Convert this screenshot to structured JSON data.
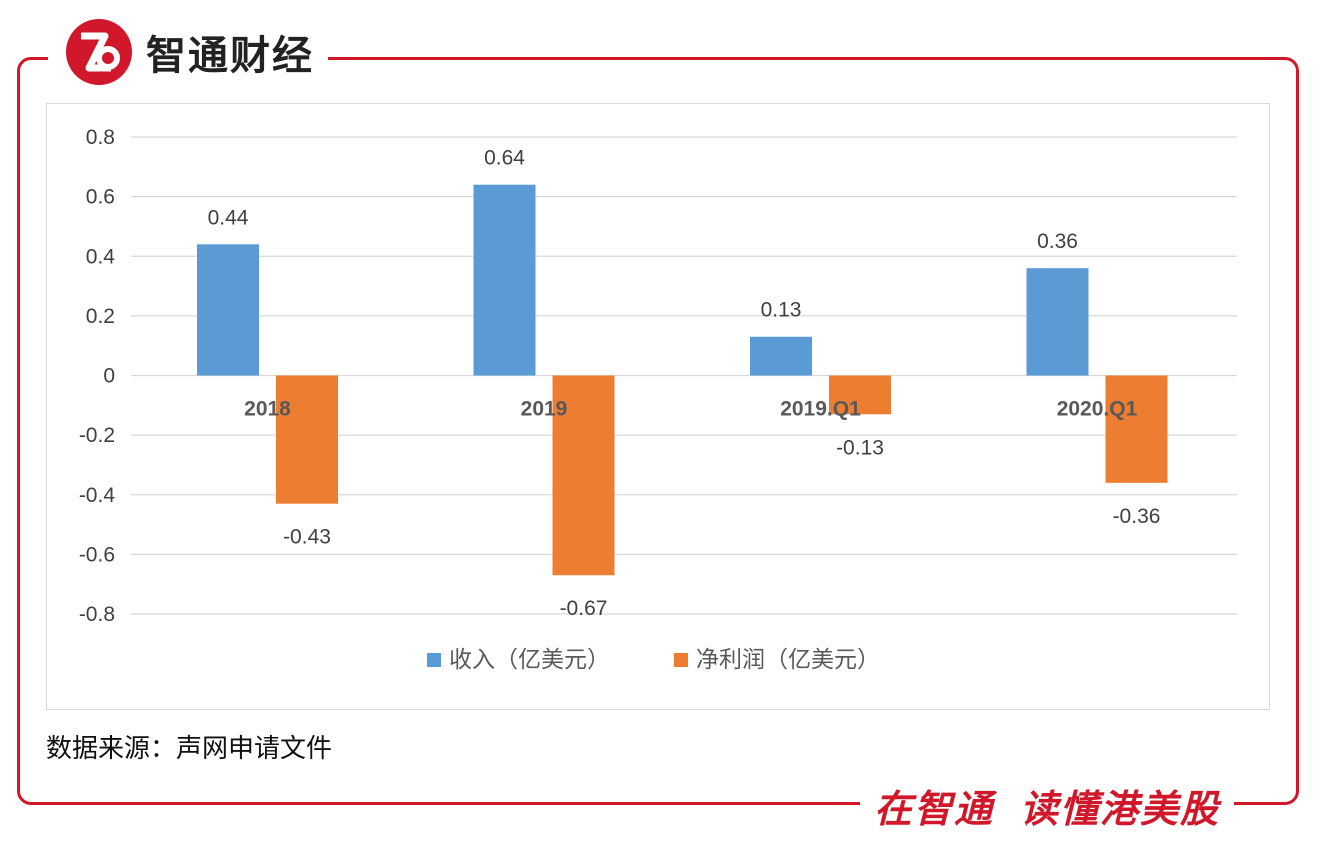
{
  "brand": {
    "name": "智通财经",
    "logo_icon": "zhitong-logo-icon",
    "accent": "#d0182a"
  },
  "chart_data": {
    "type": "bar",
    "categories": [
      "2018",
      "2019",
      "2019.Q1",
      "2020.Q1"
    ],
    "series": [
      {
        "name": "收入（亿美元）",
        "values": [
          0.44,
          0.64,
          0.13,
          0.36
        ],
        "labels": [
          "0.44",
          "0.64",
          "0.13",
          "0.36"
        ],
        "color": "#5b9bd5"
      },
      {
        "name": "净利润（亿美元）",
        "values": [
          -0.43,
          -0.67,
          -0.13,
          -0.36
        ],
        "labels": [
          "-0.43",
          "-0.67",
          "-0.13",
          "-0.36"
        ],
        "color": "#ed7d31"
      }
    ],
    "ylim": [
      -0.8,
      0.8
    ],
    "yticks": [
      "0.8",
      "0.6",
      "0.4",
      "0.2",
      "0",
      "-0.2",
      "-0.4",
      "-0.6",
      "-0.8"
    ],
    "grid": true,
    "legend": "bottom"
  },
  "source": "数据来源：声网申请文件",
  "slogan": {
    "left": "在智通",
    "right": "读懂港美股"
  }
}
